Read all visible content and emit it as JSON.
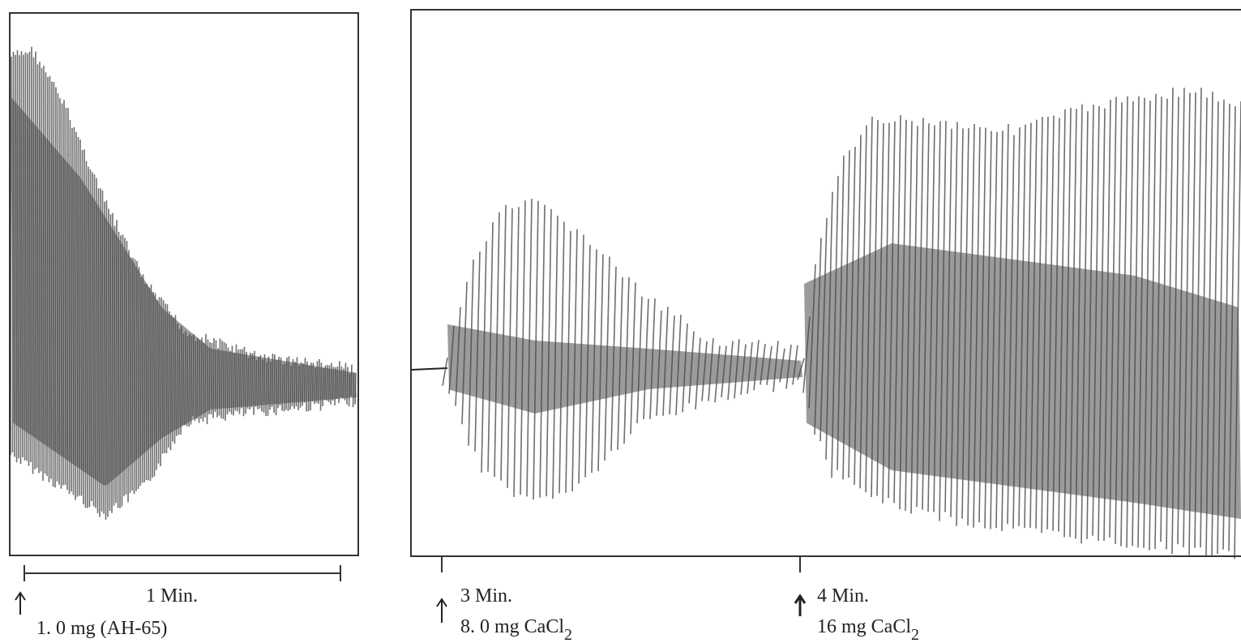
{
  "left_panel": {
    "scale_label": "1 Min.",
    "dose_label": "1. 0 mg (AH-65)"
  },
  "right_panel": {
    "marks": [
      {
        "time_label": "3 Min.",
        "dose_label": {
          "text": "8. 0 mg CaCl",
          "subscript": "2"
        }
      },
      {
        "time_label": "4 Min.",
        "dose_label": {
          "text": "16 mg CaCl",
          "subscript": "2"
        }
      }
    ]
  }
}
